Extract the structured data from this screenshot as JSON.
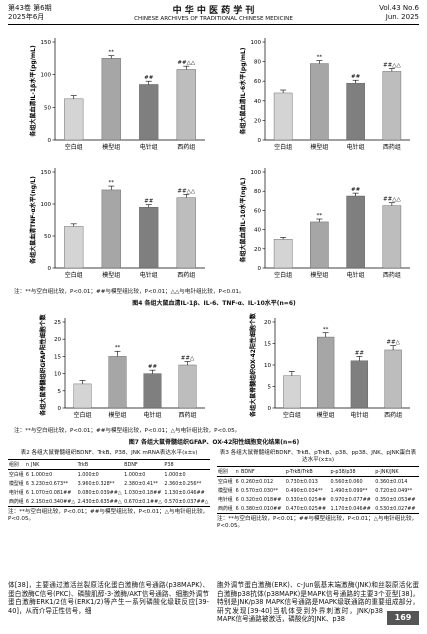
{
  "header": {
    "volume_cn": "第43卷 第6期",
    "date_cn": "2025年6月",
    "journal_cn": "中 华 中 医 药 学 刊",
    "journal_en": "CHINESE ARCHIVES OF TRADITIONAL CHINESE MEDICINE",
    "volume_en": "Vol.43 No.6",
    "date_en": "Jun. 2025"
  },
  "figure4": {
    "charts": [
      {
        "type": "bar",
        "y_label": "各组大鼠血清IL-1β水平(pg/mL)",
        "categories": [
          "空白组",
          "模型组",
          "电针组",
          "西药组"
        ],
        "values": [
          63,
          125,
          85,
          108
        ],
        "errors": [
          5,
          4,
          5,
          5
        ],
        "annotations": [
          null,
          "**",
          "##",
          "##△△"
        ],
        "colors": [
          "#d4d4d4",
          "#a6a6a6",
          "#7f7f7f",
          "#bdbdbd"
        ],
        "ylim": [
          0,
          150
        ],
        "yticks": [
          0,
          50,
          100,
          150
        ]
      },
      {
        "type": "bar",
        "y_label": "各组大鼠血清IL-6水平(pg/mL)",
        "categories": [
          "空白组",
          "模型组",
          "电针组",
          "西药组"
        ],
        "values": [
          48,
          78,
          58,
          70
        ],
        "errors": [
          3,
          3,
          3,
          3
        ],
        "annotations": [
          null,
          "**",
          "##",
          "##△△"
        ],
        "colors": [
          "#d4d4d4",
          "#a6a6a6",
          "#7f7f7f",
          "#bdbdbd"
        ],
        "ylim": [
          0,
          100
        ],
        "yticks": [
          0,
          20,
          40,
          60,
          80,
          100
        ]
      },
      {
        "type": "bar",
        "y_label": "各组大鼠血清TNF-α水平(ng/L)",
        "categories": [
          "空白组",
          "模型组",
          "电针组",
          "西药组"
        ],
        "values": [
          65,
          122,
          95,
          110
        ],
        "errors": [
          4,
          6,
          4,
          5
        ],
        "annotations": [
          null,
          "**",
          "##",
          "##△△"
        ],
        "colors": [
          "#d4d4d4",
          "#a6a6a6",
          "#7f7f7f",
          "#bdbdbd"
        ],
        "ylim": [
          0,
          150
        ],
        "yticks": [
          0,
          50,
          100,
          150
        ]
      },
      {
        "type": "bar",
        "y_label": "各组大鼠血清IL-10水平(ng/L)",
        "categories": [
          "空白组",
          "模型组",
          "电针组",
          "西药组"
        ],
        "values": [
          30,
          48,
          75,
          65
        ],
        "errors": [
          2,
          3,
          3,
          3
        ],
        "annotations": [
          null,
          "**",
          "##",
          "##△△"
        ],
        "colors": [
          "#d4d4d4",
          "#a6a6a6",
          "#7f7f7f",
          "#bdbdbd"
        ],
        "ylim": [
          0,
          100
        ],
        "yticks": [
          0,
          20,
          40,
          60,
          80,
          100
        ]
      }
    ],
    "note": "注：**与空白组比较，P<0.01；##与模型组比较，P<0.01；△△与电针组比较，P<0.01。",
    "caption": "图4 各组大鼠血清IL-1β、IL-6、TNF-α、IL-10水平(n=6)"
  },
  "figure7": {
    "charts": [
      {
        "type": "bar",
        "y_label": "各组大鼠脊髓组织GFAP阳性细胞个数",
        "categories": [
          "空白组",
          "模型组",
          "电针组",
          "西药组"
        ],
        "values": [
          7,
          15,
          10,
          12.5
        ],
        "errors": [
          1,
          1.5,
          1,
          1
        ],
        "annotations": [
          null,
          "**",
          "##",
          "##△"
        ],
        "colors": [
          "#d4d4d4",
          "#a6a6a6",
          "#7f7f7f",
          "#bdbdbd"
        ],
        "ylim": [
          0,
          25
        ],
        "yticks": [
          0,
          5,
          10,
          15,
          20,
          25
        ]
      },
      {
        "type": "bar",
        "y_label": "各组大鼠脊髓组织OX-42阳性细胞个数",
        "categories": [
          "空白组",
          "模型组",
          "电针组",
          "西药组"
        ],
        "values": [
          7.5,
          16.5,
          11,
          13.5
        ],
        "errors": [
          1,
          1,
          1,
          1
        ],
        "annotations": [
          null,
          "**",
          "##",
          "##△"
        ],
        "colors": [
          "#d4d4d4",
          "#a6a6a6",
          "#7f7f7f",
          "#bdbdbd"
        ],
        "ylim": [
          0,
          20
        ],
        "yticks": [
          0,
          5,
          10,
          15,
          20
        ]
      }
    ],
    "note": "注：**与空白组比较，P<0.01；##与模型组比较，P<0.01；△与电针组比较，P<0.05。",
    "caption": "图7 各组大鼠脊髓组织GFAP、OX-42阳性细胞变化结果(n=6)"
  },
  "table2": {
    "title": "表2 各组大鼠脊髓组织BDNF、TrkB、P38、JNK mRNA表达水平(x±s)",
    "columns": [
      "组别",
      "n",
      "JNK",
      "TrkB",
      "BDNF",
      "P38"
    ],
    "rows": [
      [
        "空白组",
        "6",
        "1.000±0",
        "1.000±0",
        "1.000±0",
        "1.000±0"
      ],
      [
        "模型组",
        "6",
        "3.230±0.673**",
        "3.960±0.328**",
        "2.380±0.41**",
        "2.360±0.256**"
      ],
      [
        "电针组",
        "6",
        "1.070±0.081##",
        "0.080±0.039##△",
        "1.030±0.18##",
        "1.130±0.046##"
      ],
      [
        "西药组",
        "6",
        "2.150±0.340##△",
        "2.430±0.635##△",
        "0.670±0.1##△",
        "0.570±0.037##△"
      ]
    ],
    "note": "注：**与空白组比较，P<0.01；##与模型组比较，P<0.01；△与电针组比较，P<0.05。"
  },
  "table3": {
    "title": "表3 各组大鼠脊髓组织BDNF、TrkB、pTrkB、p38、pp38、JNK、pJNK蛋白表达水平(x±s)",
    "columns": [
      "组别",
      "n",
      "BDNF",
      "p-TrkB/TrkB",
      "p-p38/p38",
      "p-JNK/JNK"
    ],
    "rows": [
      [
        "空白组",
        "6",
        "0.260±0.012",
        "0.730±0.013",
        "0.560±0.060",
        "0.360±0.014"
      ],
      [
        "模型组",
        "6",
        "0.570±0.030**",
        "0.490±0.034**",
        "1.490±0.099**",
        "0.720±0.049**"
      ],
      [
        "电针组",
        "6",
        "0.320±0.018##",
        "0.330±0.025##",
        "0.970±0.077##",
        "0.350±0.053##"
      ],
      [
        "西药组",
        "6",
        "0.380±0.010##",
        "0.470±0.025##",
        "1.170±0.046##",
        "0.530±0.027##"
      ]
    ],
    "note": "注：**与空白组比较，P<0.01；##与模型组比较，P<0.01；△与电针组比较，P<0.05。"
  },
  "body": {
    "left": "体[38]，主要通过激活丝裂原活化蛋白激酶信号通路(p38MAPK)、蛋白激酶C信号(PKC)、磷酸肌醇-3-激酶/AKT信号通路、细胞外调节蛋白激酶ERK1/2信号(ERK1/2)等产生一系列磷酸化级联反应[39-40]，从而介导正性信号，细",
    "right": "胞外调节蛋白激酶(ERK)、c-Jun氨基末端激酶(JNK)和丝裂原活化蛋白激酶p38抗体(p38MAPK)是MAPK信号通路的主要3个亚型[38]，特别是JNK/p38 MAPK信号通路是MAPK级联通路的重要组成部分，研究发现[39-40]当机体受到外界刺激时，JNK/p38 MAPK信号通路被激活，磷酸化的JNK、p38"
  },
  "page_number": "169"
}
